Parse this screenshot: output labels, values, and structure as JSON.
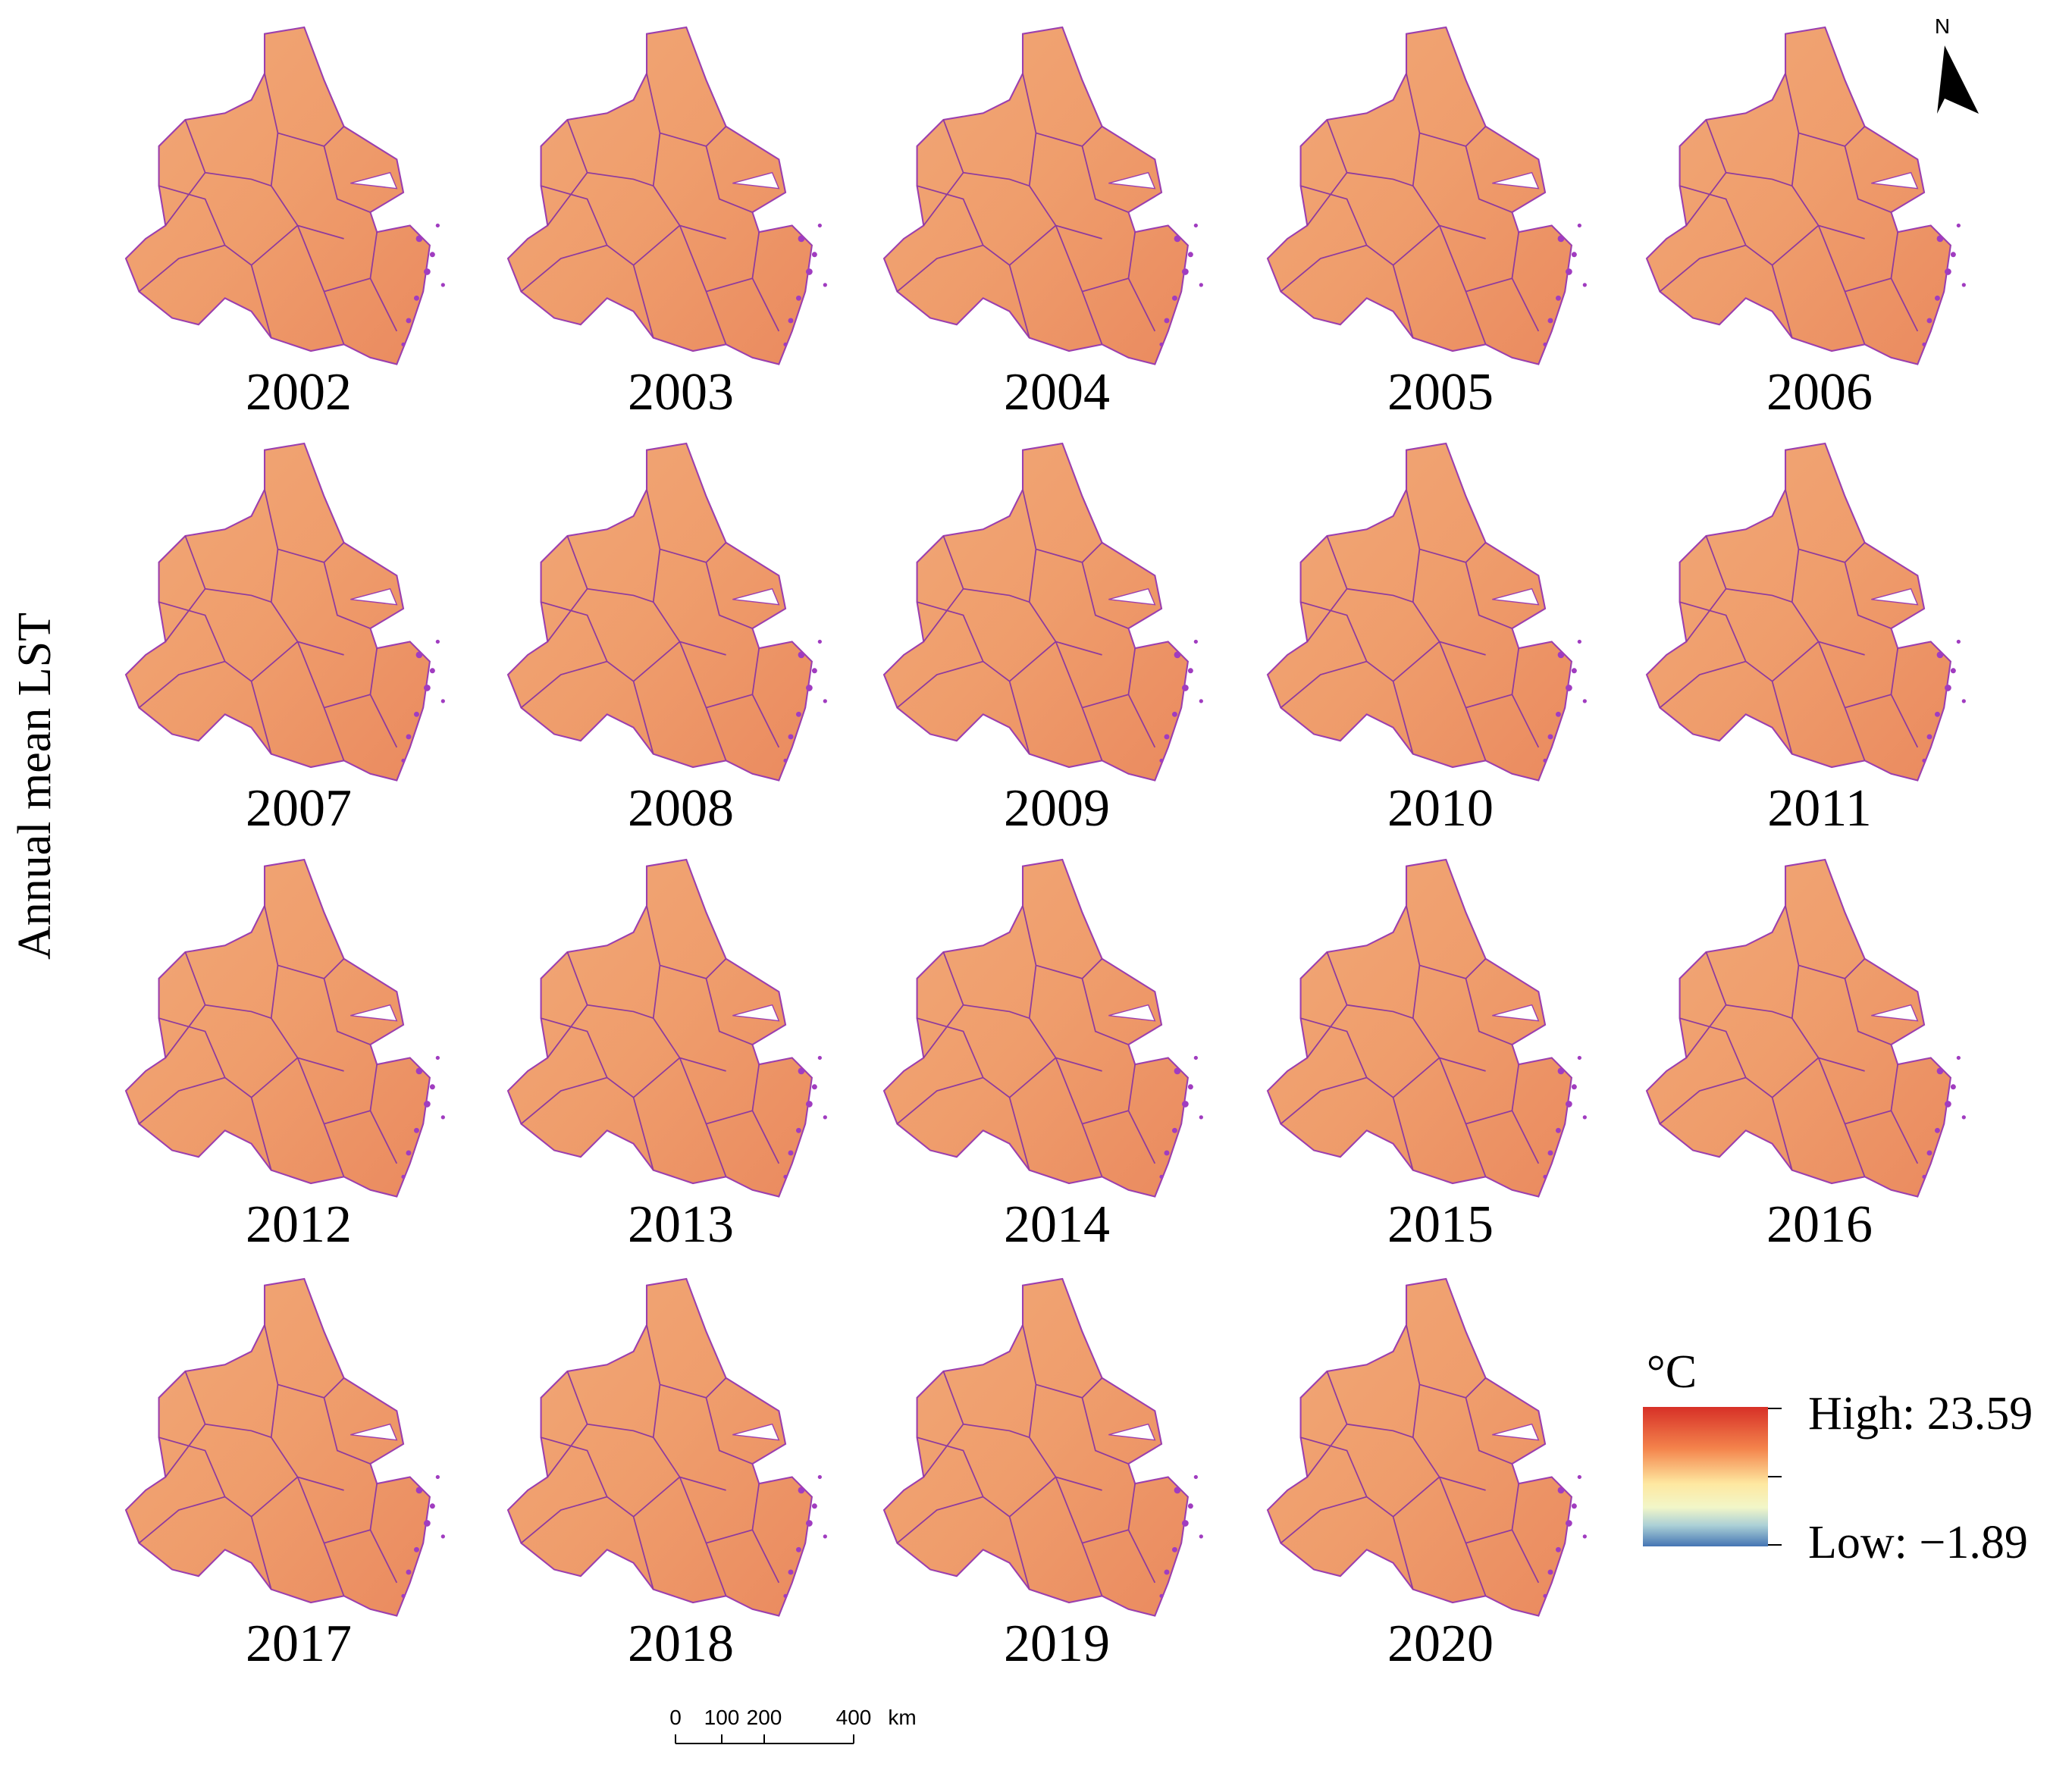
{
  "title": "Annual mean LST",
  "panels": [
    {
      "year": "2002"
    },
    {
      "year": "2003"
    },
    {
      "year": "2004"
    },
    {
      "year": "2005"
    },
    {
      "year": "2006"
    },
    {
      "year": "2007"
    },
    {
      "year": "2008"
    },
    {
      "year": "2009"
    },
    {
      "year": "2010"
    },
    {
      "year": "2011"
    },
    {
      "year": "2012"
    },
    {
      "year": "2013"
    },
    {
      "year": "2014"
    },
    {
      "year": "2015"
    },
    {
      "year": "2016"
    },
    {
      "year": "2017"
    },
    {
      "year": "2018"
    },
    {
      "year": "2019"
    },
    {
      "year": "2020"
    }
  ],
  "legend": {
    "unit": "°C",
    "high": "High: 23.59",
    "low": "Low: −1.89"
  },
  "scale_bar": {
    "ticks": [
      "0",
      "100",
      "200",
      "400"
    ],
    "unit": "km"
  },
  "north": "N"
}
